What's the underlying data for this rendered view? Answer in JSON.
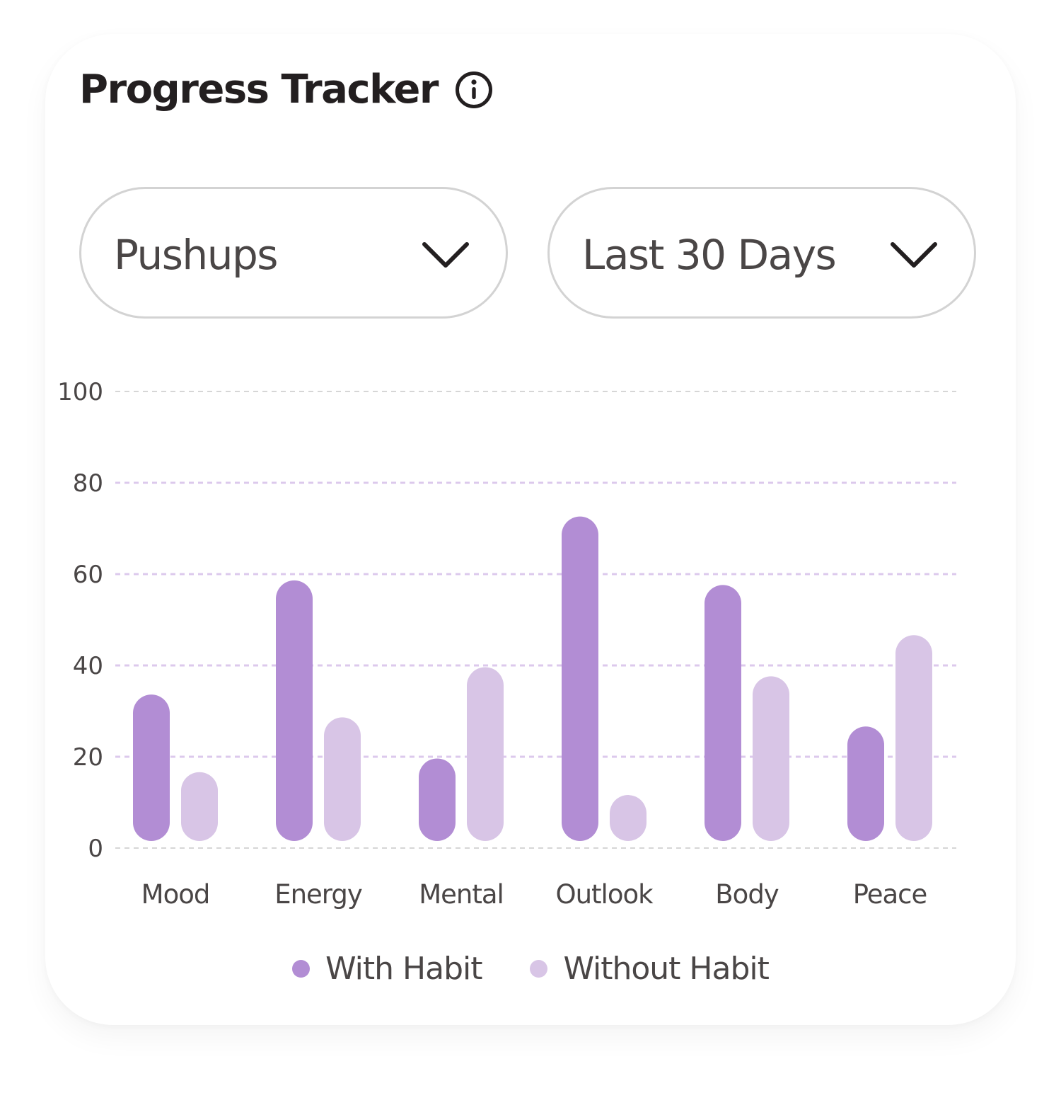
{
  "header": {
    "title": "Progress Tracker",
    "info_icon": "info-circle-icon"
  },
  "filters": {
    "habit_select": {
      "value": "Pushups",
      "icon": "chevron-down-icon"
    },
    "period_select": {
      "value": "Last 30 Days",
      "icon": "chevron-down-icon"
    }
  },
  "colors": {
    "with_habit": "#b28dd4",
    "without_habit": "#d8c5e6",
    "grid_light": "#d6d6d6",
    "grid_accent": "#dcc9ec"
  },
  "chart_data": {
    "type": "bar",
    "categories": [
      "Mood",
      "Energy",
      "Mental",
      "Outlook",
      "Body",
      "Peace"
    ],
    "series": [
      {
        "name": "With Habit",
        "values": [
          33,
          58,
          19,
          72,
          57,
          26
        ]
      },
      {
        "name": "Without Habit",
        "values": [
          16,
          28,
          39,
          11,
          37,
          46
        ]
      }
    ],
    "y_ticks": [
      "0",
      "20",
      "40",
      "60",
      "80",
      "100"
    ],
    "ylim": [
      0,
      100
    ],
    "grid": true,
    "legend_position": "bottom-center"
  }
}
